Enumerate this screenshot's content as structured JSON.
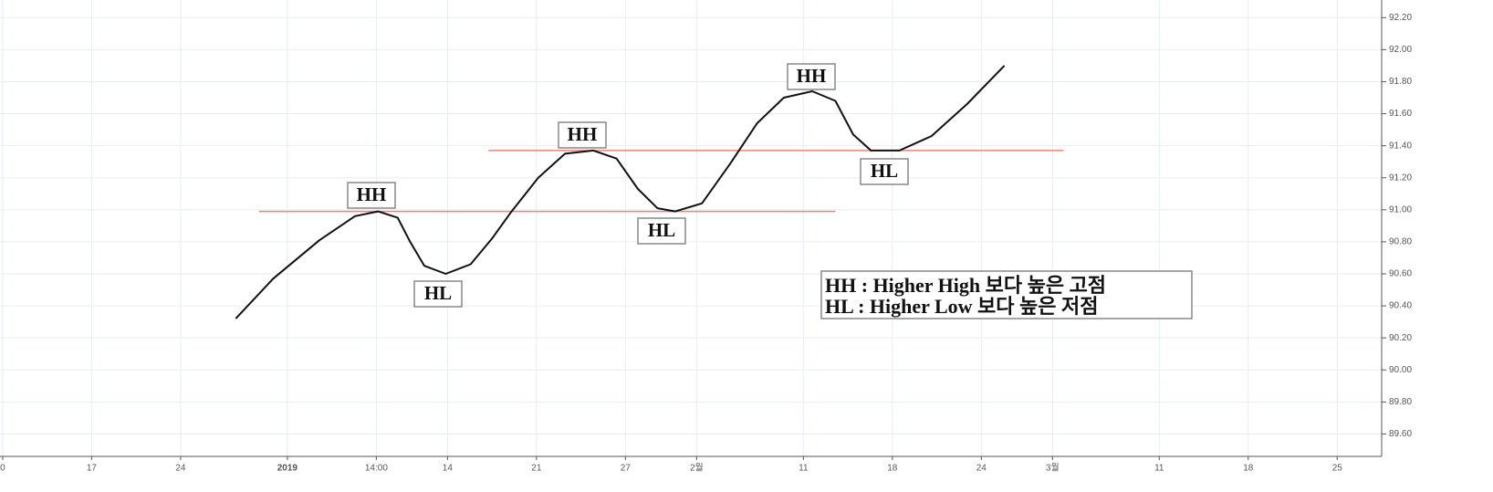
{
  "chart_data": {
    "type": "line",
    "x": [
      13.1,
      15.2,
      17.8,
      19.8,
      21.1,
      22.2,
      22.9,
      23.7,
      24.9,
      26.3,
      27.5,
      28.6,
      30.1,
      31.6,
      33.2,
      34.5,
      35.7,
      36.8,
      37.8,
      39.3,
      40.9,
      42.4,
      43.9,
      45.5,
      46.8,
      47.8,
      48.8,
      50.4,
      52.2,
      54.2,
      56.3
    ],
    "series": [
      {
        "color": "#111111",
        "values": [
          90.32,
          90.57,
          90.81,
          90.96,
          90.99,
          90.95,
          90.8,
          90.65,
          90.6,
          90.66,
          90.82,
          90.99,
          91.2,
          91.35,
          91.37,
          91.32,
          91.13,
          91.01,
          90.99,
          91.04,
          91.29,
          91.54,
          91.7,
          91.74,
          91.68,
          91.47,
          91.37,
          91.37,
          91.46,
          91.66,
          91.9
        ]
      }
    ],
    "reference_lines": [
      {
        "y": 90.99,
        "x": [
          14.4,
          46.8
        ],
        "color": "#f08080"
      },
      {
        "y": 91.37,
        "x": [
          27.3,
          59.6
        ],
        "color": "#f08080"
      }
    ],
    "annotations": [
      "HH",
      "HL",
      "HH",
      "HL",
      "HH",
      "HL"
    ],
    "legend_text": [
      "HH : Higher High 보다 높은 고점",
      "HL : Higher Low  보다 높은 저점"
    ],
    "xlim": [
      -0.15,
      77.5
    ],
    "xticks": [
      {
        "value": 0,
        "label": "0"
      },
      {
        "value": 5,
        "label": "17"
      },
      {
        "value": 10,
        "label": "24"
      },
      {
        "value": 16,
        "label": "2019"
      },
      {
        "value": 21,
        "label": "14:00"
      },
      {
        "value": 25,
        "label": "14"
      },
      {
        "value": 30,
        "label": "21"
      },
      {
        "value": 35,
        "label": "27"
      },
      {
        "value": 39,
        "label": "2월"
      },
      {
        "value": 45,
        "label": "11"
      },
      {
        "value": 50,
        "label": "18"
      },
      {
        "value": 55,
        "label": "24"
      },
      {
        "value": 59,
        "label": "3월"
      },
      {
        "value": 65,
        "label": "11"
      },
      {
        "value": 70,
        "label": "18"
      },
      {
        "value": 75,
        "label": "25"
      }
    ],
    "ylim": [
      89.46,
      92.31
    ],
    "yticks": [
      {
        "value": 89.6,
        "label": "89.60"
      },
      {
        "value": 89.8,
        "label": "89.80"
      },
      {
        "value": 90.0,
        "label": "90.00"
      },
      {
        "value": 90.2,
        "label": "90.20"
      },
      {
        "value": 90.4,
        "label": "90.40"
      },
      {
        "value": 90.6,
        "label": "90.60"
      },
      {
        "value": 90.8,
        "label": "90.80"
      },
      {
        "value": 91.0,
        "label": "91.00"
      },
      {
        "value": 91.2,
        "label": "91.20"
      },
      {
        "value": 91.4,
        "label": "91.40"
      },
      {
        "value": 91.6,
        "label": "91.60"
      },
      {
        "value": 91.8,
        "label": "91.80"
      },
      {
        "value": 92.0,
        "label": "92.00"
      },
      {
        "value": 92.2,
        "label": "92.20"
      }
    ],
    "grid": true
  }
}
